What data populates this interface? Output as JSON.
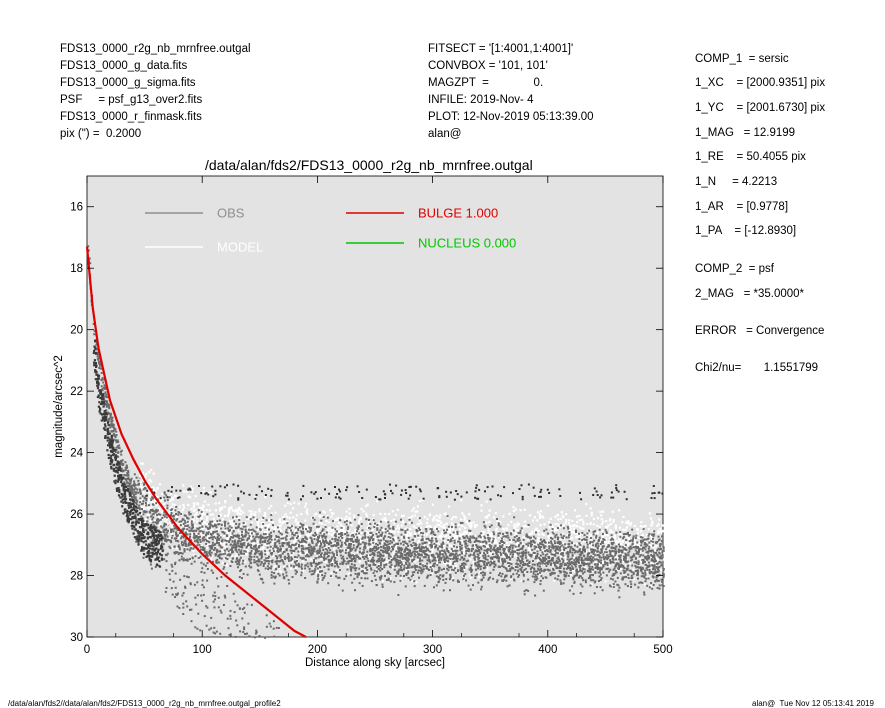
{
  "header_left": [
    "FDS13_0000_r2g_nb_mrnfree.outgal",
    "FDS13_0000_g_data.fits",
    "FDS13_0000_g_sigma.fits",
    "PSF     = psf_g13_over2.fits",
    "FDS13_0000_r_finmask.fits",
    "pix (\") =  0.2000"
  ],
  "header_mid": [
    "FITSECT = '[1:4001,1:4001]'",
    "CONVBOX = '101, 101'",
    "MAGZPT  =              0.",
    "INFILE: 2019-Nov- 4",
    "PLOT: 12-Nov-2019 05:13:39.00",
    "alan@"
  ],
  "params": [
    "COMP_1  = sersic",
    "1_XC    = [2000.9351] pix",
    "1_YC    = [2001.6730] pix",
    "1_MAG   = 12.9199",
    "1_RE    = 50.4055 pix",
    "1_N     = 4.2213",
    "1_AR    = [0.9778]",
    "1_PA    = [-12.8930]",
    "COMP_2  = psf",
    "2_MAG   = *35.0000*",
    "ERROR   = Convergence",
    "Chi2/nu=       1.1551799"
  ],
  "footer_left": "/data/alan/fds2//data/alan/fds2/FDS13_0000_r2g_nb_mrnfree.outgal_profile2",
  "footer_right": "alan@  Tue Nov 12 05:13:41 2019",
  "colors": {
    "plot_bg": "#e3e3e3",
    "obs": "#6a6a6a",
    "model": "#ffffff",
    "bulge": "#e00000",
    "nucleus": "#00c800",
    "obs_legend": "#8f8f8f"
  },
  "chart_data": {
    "type": "scatter",
    "title": "/data/alan/fds2/FDS13_0000_r2g_nb_mrnfree.outgal",
    "xlabel": "Distance along sky [arcsec]",
    "ylabel": "magnitude/arcsec^2",
    "xlim": [
      0,
      500
    ],
    "ylim": [
      30,
      15
    ],
    "y_inverted": true,
    "xticks": [
      0,
      100,
      200,
      300,
      400,
      500
    ],
    "yticks": [
      16,
      18,
      20,
      22,
      24,
      26,
      28,
      30
    ],
    "legend": [
      {
        "label": "OBS",
        "color": "#8f8f8f"
      },
      {
        "label": "MODEL",
        "color": "#ffffff"
      },
      {
        "label": "BULGE  1.000",
        "color": "#e00000"
      },
      {
        "label": "NUCLEUS  0.000",
        "color": "#00c800"
      }
    ],
    "series": [
      {
        "name": "OBS",
        "kind": "scatter",
        "x": [
          0,
          5,
          10,
          20,
          30,
          40,
          50,
          70,
          100,
          150,
          200,
          300,
          400,
          500
        ],
        "y": [
          17.3,
          19.7,
          21.2,
          23.0,
          24.4,
          25.3,
          25.9,
          26.4,
          26.8,
          27.1,
          27.2,
          27.3,
          27.4,
          27.5
        ]
      },
      {
        "name": "MODEL",
        "kind": "scatter",
        "x": [
          0,
          5,
          10,
          20,
          30,
          40,
          50,
          70,
          100,
          150,
          200,
          300,
          400,
          500
        ],
        "y": [
          17.2,
          19.5,
          21.0,
          22.9,
          24.2,
          25.1,
          25.7,
          26.3,
          26.6,
          26.9,
          27.0,
          27.1,
          27.2,
          27.3
        ]
      },
      {
        "name": "BULGE  1.000",
        "kind": "line",
        "x": [
          0,
          5,
          10,
          20,
          30,
          40,
          50,
          60,
          70,
          80,
          100,
          120,
          140,
          160,
          180,
          190
        ],
        "y": [
          17.3,
          19.3,
          20.6,
          22.3,
          23.4,
          24.2,
          24.9,
          25.5,
          26.0,
          26.5,
          27.3,
          28.0,
          28.6,
          29.2,
          29.8,
          30.0
        ]
      }
    ]
  }
}
